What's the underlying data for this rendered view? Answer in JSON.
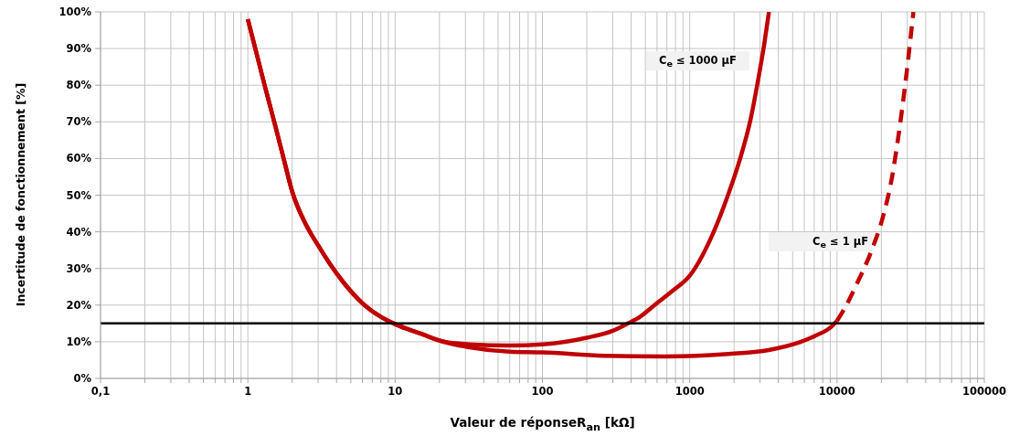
{
  "chart_data": {
    "type": "line",
    "xlabel": "Valeur de réponseR$_{an}$ [kΩ]",
    "ylabel": "Incertitude de fonctionnement [%]",
    "series": [
      {
        "name": "C$_{e}$ ≤ 1000 µF",
        "color": "#c00000",
        "x": [
          1,
          1.3,
          1.5,
          1.75,
          2,
          2.5,
          3,
          3.6,
          4.5,
          6,
          8,
          10,
          15,
          21,
          32,
          60,
          100,
          200,
          300,
          380,
          460,
          580,
          770,
          1000,
          1430,
          1800,
          2200,
          2600,
          2900,
          3200,
          3450
        ],
        "values": [
          98,
          80,
          70.5,
          60,
          51,
          41.7,
          36.3,
          31.3,
          26,
          20.5,
          16.8,
          14.8,
          12.2,
          10.1,
          9.3,
          9,
          9.3,
          11.1,
          13,
          15,
          16.8,
          20.1,
          24,
          28,
          39.3,
          49.5,
          60,
          71,
          81,
          91,
          100
        ]
      },
      {
        "color": "#c00000",
        "x": [
          1,
          1.3,
          1.5,
          1.75,
          2,
          2.5,
          3,
          3.6,
          4.5,
          6,
          8,
          10,
          15,
          21,
          32,
          60,
          100,
          260,
          670,
          1730,
          3500,
          5700,
          7200,
          9200,
          10000
        ],
        "values": [
          98,
          80,
          70.5,
          60,
          51,
          41.7,
          36.3,
          31.3,
          26,
          20.5,
          16.8,
          14.8,
          12.2,
          10.1,
          8.5,
          7.3,
          7.1,
          6.2,
          6,
          6.6,
          7.8,
          10,
          11.7,
          14.2,
          15.7
        ]
      },
      {
        "name": "C$_{e}$ ≤ 1 µF",
        "color": "#c00000",
        "line_style": "dashed",
        "x": [
          10000,
          11300,
          13400,
          17200,
          20700,
          23500,
          25700,
          28200,
          30400,
          33000
        ],
        "values": [
          15.7,
          19.2,
          25.2,
          35,
          44.7,
          54.4,
          64.2,
          76.1,
          87,
          100
        ]
      }
    ],
    "xlim": [
      0.1,
      100000
    ],
    "ylim": [
      0,
      100
    ],
    "log": "x",
    "xticks": [
      {
        "value": 0.1,
        "label": "0,1"
      },
      {
        "value": 0.2,
        "label": null
      },
      {
        "value": 0.3,
        "label": null
      },
      {
        "value": 0.4,
        "label": null
      },
      {
        "value": 0.5,
        "label": null
      },
      {
        "value": 0.6,
        "label": null
      },
      {
        "value": 0.7,
        "label": null
      },
      {
        "value": 0.8,
        "label": null
      },
      {
        "value": 0.9,
        "label": null
      },
      1,
      {
        "value": 2,
        "label": null
      },
      {
        "value": 3,
        "label": null
      },
      {
        "value": 4,
        "label": null
      },
      {
        "value": 5,
        "label": null
      },
      {
        "value": 6,
        "label": null
      },
      {
        "value": 7,
        "label": null
      },
      {
        "value": 8,
        "label": null
      },
      {
        "value": 9,
        "label": null
      },
      10,
      {
        "value": 20,
        "label": null
      },
      {
        "value": 30,
        "label": null
      },
      {
        "value": 40,
        "label": null
      },
      {
        "value": 50,
        "label": null
      },
      {
        "value": 60,
        "label": null
      },
      {
        "value": 70,
        "label": null
      },
      {
        "value": 80,
        "label": null
      },
      {
        "value": 90,
        "label": null
      },
      100,
      {
        "value": 200,
        "label": null
      },
      {
        "value": 300,
        "label": null
      },
      {
        "value": 400,
        "label": null
      },
      {
        "value": 500,
        "label": null
      },
      {
        "value": 600,
        "label": null
      },
      {
        "value": 700,
        "label": null
      },
      {
        "value": 800,
        "label": null
      },
      {
        "value": 900,
        "label": null
      },
      1000,
      {
        "value": 2000,
        "label": null
      },
      {
        "value": 3000,
        "label": null
      },
      {
        "value": 4000,
        "label": null
      },
      {
        "value": 5000,
        "label": null
      },
      {
        "value": 6000,
        "label": null
      },
      {
        "value": 7000,
        "label": null
      },
      {
        "value": 8000,
        "label": null
      },
      {
        "value": 9000,
        "label": null
      },
      10000,
      {
        "value": 20000,
        "label": null
      },
      {
        "value": 30000,
        "label": null
      },
      {
        "value": 40000,
        "label": null
      },
      {
        "value": 50000,
        "label": null
      },
      {
        "value": 60000,
        "label": null
      },
      {
        "value": 70000,
        "label": null
      },
      {
        "value": 80000,
        "label": null
      },
      {
        "value": 90000,
        "label": null
      },
      100000
    ],
    "yticks": [
      {
        "value": 0,
        "label": "0%"
      },
      {
        "value": 10,
        "label": "10%"
      },
      {
        "value": 20,
        "label": "20%"
      },
      {
        "value": 30,
        "label": "30%"
      },
      {
        "value": 40,
        "label": "40%"
      },
      {
        "value": 50,
        "label": "50%"
      },
      {
        "value": 60,
        "label": "60%"
      },
      {
        "value": 70,
        "label": "70%"
      },
      {
        "value": 80,
        "label": "80%"
      },
      {
        "value": 90,
        "label": "90%"
      },
      {
        "value": 100,
        "label": "100%"
      }
    ],
    "ref_lines": [
      {
        "axis": "y",
        "value": 15,
        "color": "#000000"
      }
    ],
    "grid": true,
    "marker": "none",
    "line_style": "solid"
  }
}
